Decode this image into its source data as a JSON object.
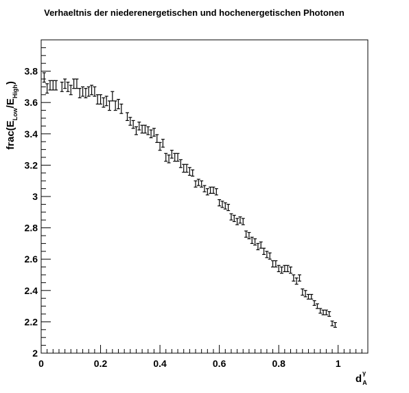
{
  "chart_data": {
    "type": "scatter",
    "title": "Verhaeltnis der niederenergetischen und hochenergetischen Photonen",
    "xlabel": {
      "main": "d",
      "sup": "γ",
      "sub": "A"
    },
    "ylabel": {
      "prefix": "frac(E",
      "sub1": "Low",
      "mid": "/E",
      "sub2": "High",
      "suffix": ")"
    },
    "xlim": [
      0,
      1.1
    ],
    "ylim": [
      2.0,
      4.0
    ],
    "xticks": [
      "0",
      "0.2",
      "0.4",
      "0.6",
      "0.8",
      "1"
    ],
    "yticks": [
      "2",
      "2.2",
      "2.4",
      "2.6",
      "2.8",
      "3",
      "3.2",
      "3.4",
      "3.6",
      "3.8"
    ],
    "grid": false,
    "series": [
      {
        "x": [
          0.01,
          0.02,
          0.03,
          0.04,
          0.05,
          0.07,
          0.08,
          0.09,
          0.1,
          0.11,
          0.12,
          0.13,
          0.14,
          0.15,
          0.16,
          0.17,
          0.18,
          0.19,
          0.2,
          0.21,
          0.22,
          0.23,
          0.24,
          0.25,
          0.26,
          0.27,
          0.29,
          0.3,
          0.31,
          0.32,
          0.33,
          0.34,
          0.35,
          0.36,
          0.37,
          0.38,
          0.39,
          0.4,
          0.41,
          0.42,
          0.43,
          0.44,
          0.45,
          0.46,
          0.47,
          0.48,
          0.49,
          0.5,
          0.51,
          0.52,
          0.53,
          0.54,
          0.55,
          0.56,
          0.57,
          0.58,
          0.59,
          0.6,
          0.61,
          0.62,
          0.63,
          0.64,
          0.65,
          0.66,
          0.67,
          0.68,
          0.69,
          0.7,
          0.71,
          0.72,
          0.73,
          0.74,
          0.75,
          0.76,
          0.77,
          0.78,
          0.79,
          0.8,
          0.81,
          0.82,
          0.83,
          0.84,
          0.85,
          0.86,
          0.87,
          0.88,
          0.89,
          0.9,
          0.91,
          0.92,
          0.93,
          0.94,
          0.95,
          0.96,
          0.97,
          0.98,
          0.99
        ],
        "y": [
          3.76,
          3.69,
          3.71,
          3.71,
          3.71,
          3.7,
          3.72,
          3.7,
          3.68,
          3.72,
          3.72,
          3.66,
          3.67,
          3.66,
          3.67,
          3.68,
          3.67,
          3.62,
          3.62,
          3.6,
          3.61,
          3.58,
          3.64,
          3.58,
          3.59,
          3.56,
          3.51,
          3.48,
          3.46,
          3.42,
          3.45,
          3.43,
          3.43,
          3.42,
          3.4,
          3.41,
          3.37,
          3.32,
          3.34,
          3.25,
          3.24,
          3.27,
          3.25,
          3.25,
          3.21,
          3.18,
          3.18,
          3.16,
          3.15,
          3.08,
          3.09,
          3.08,
          3.05,
          3.03,
          3.04,
          3.04,
          3.03,
          2.96,
          2.95,
          2.94,
          2.93,
          2.87,
          2.86,
          2.84,
          2.85,
          2.84,
          2.76,
          2.75,
          2.72,
          2.71,
          2.68,
          2.69,
          2.65,
          2.63,
          2.62,
          2.57,
          2.57,
          2.54,
          2.53,
          2.54,
          2.54,
          2.53,
          2.48,
          2.46,
          2.48,
          2.39,
          2.38,
          2.36,
          2.36,
          2.32,
          2.3,
          2.27,
          2.26,
          2.26,
          2.25,
          2.19,
          2.18
        ],
        "err": [
          0.03,
          0.03,
          0.03,
          0.03,
          0.03,
          0.03,
          0.03,
          0.03,
          0.03,
          0.03,
          0.03,
          0.03,
          0.03,
          0.03,
          0.03,
          0.03,
          0.03,
          0.03,
          0.03,
          0.03,
          0.03,
          0.03,
          0.03,
          0.03,
          0.03,
          0.03,
          0.025,
          0.025,
          0.025,
          0.025,
          0.025,
          0.025,
          0.025,
          0.025,
          0.025,
          0.025,
          0.025,
          0.025,
          0.025,
          0.025,
          0.025,
          0.025,
          0.025,
          0.025,
          0.025,
          0.025,
          0.025,
          0.025,
          0.02,
          0.02,
          0.02,
          0.02,
          0.02,
          0.02,
          0.02,
          0.02,
          0.02,
          0.02,
          0.02,
          0.02,
          0.02,
          0.02,
          0.02,
          0.02,
          0.02,
          0.02,
          0.02,
          0.02,
          0.02,
          0.02,
          0.02,
          0.02,
          0.02,
          0.02,
          0.02,
          0.02,
          0.02,
          0.02,
          0.02,
          0.02,
          0.02,
          0.02,
          0.02,
          0.02,
          0.02,
          0.02,
          0.02,
          0.015,
          0.015,
          0.015,
          0.015,
          0.015,
          0.015,
          0.015,
          0.015,
          0.015,
          0.015
        ]
      }
    ]
  },
  "colors": {
    "axis": "#000000",
    "marker": "#000000",
    "background": "#ffffff"
  }
}
